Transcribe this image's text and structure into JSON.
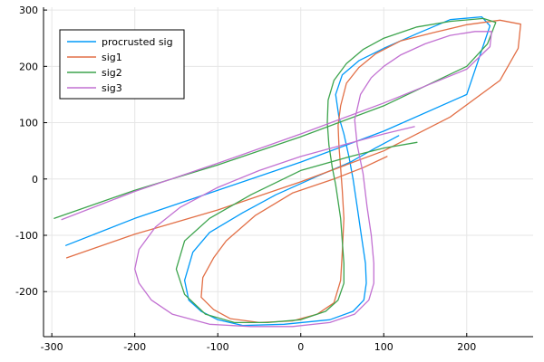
{
  "chart_data": {
    "type": "line",
    "xlim": [
      -310,
      280
    ],
    "ylim": [
      -280,
      305
    ],
    "x_ticks": [
      -300,
      -200,
      -100,
      0,
      100,
      200
    ],
    "y_ticks": [
      -200,
      -100,
      0,
      100,
      200,
      300
    ],
    "x_tick_labels": [
      "-300",
      "-200",
      "-100",
      "0",
      "100",
      "200"
    ],
    "y_tick_labels": [
      "-200",
      "-100",
      "0",
      "100",
      "200",
      "300"
    ],
    "grid": true,
    "legend_position": "top-left",
    "series": [
      {
        "name": "procrusted sig",
        "color": "#009AF9",
        "points": [
          [
            -283,
            -118
          ],
          [
            -200,
            -70
          ],
          [
            -100,
            -20
          ],
          [
            0,
            30
          ],
          [
            100,
            85
          ],
          [
            200,
            150
          ],
          [
            228,
            272
          ],
          [
            218,
            288
          ],
          [
            180,
            283
          ],
          [
            140,
            258
          ],
          [
            100,
            232
          ],
          [
            70,
            210
          ],
          [
            50,
            185
          ],
          [
            42,
            150
          ],
          [
            46,
            110
          ],
          [
            52,
            80
          ],
          [
            58,
            40
          ],
          [
            63,
            0
          ],
          [
            68,
            -50
          ],
          [
            73,
            -100
          ],
          [
            78,
            -150
          ],
          [
            79,
            -185
          ],
          [
            76,
            -215
          ],
          [
            63,
            -235
          ],
          [
            35,
            -250
          ],
          [
            -20,
            -258
          ],
          [
            -70,
            -260
          ],
          [
            -100,
            -250
          ],
          [
            -120,
            -235
          ],
          [
            -135,
            -215
          ],
          [
            -140,
            -180
          ],
          [
            -130,
            -130
          ],
          [
            -110,
            -95
          ],
          [
            -70,
            -60
          ],
          [
            -30,
            -28
          ],
          [
            20,
            5
          ],
          [
            60,
            30
          ],
          [
            90,
            55
          ],
          [
            118,
            77
          ]
        ]
      },
      {
        "name": "sig1",
        "color": "#E26F46",
        "points": [
          [
            -282,
            -140
          ],
          [
            -200,
            -98
          ],
          [
            -100,
            -55
          ],
          [
            0,
            -5
          ],
          [
            100,
            50
          ],
          [
            180,
            110
          ],
          [
            240,
            175
          ],
          [
            262,
            232
          ],
          [
            265,
            275
          ],
          [
            240,
            282
          ],
          [
            200,
            274
          ],
          [
            160,
            260
          ],
          [
            120,
            245
          ],
          [
            90,
            222
          ],
          [
            70,
            198
          ],
          [
            55,
            170
          ],
          [
            48,
            130
          ],
          [
            45,
            95
          ],
          [
            46,
            60
          ],
          [
            48,
            20
          ],
          [
            50,
            -20
          ],
          [
            52,
            -70
          ],
          [
            50,
            -130
          ],
          [
            48,
            -180
          ],
          [
            40,
            -220
          ],
          [
            20,
            -240
          ],
          [
            -10,
            -252
          ],
          [
            -50,
            -255
          ],
          [
            -85,
            -248
          ],
          [
            -105,
            -232
          ],
          [
            -120,
            -210
          ],
          [
            -118,
            -175
          ],
          [
            -105,
            -140
          ],
          [
            -90,
            -110
          ],
          [
            -55,
            -65
          ],
          [
            -10,
            -25
          ],
          [
            40,
            0
          ],
          [
            75,
            20
          ],
          [
            104,
            40
          ]
        ]
      },
      {
        "name": "sig2",
        "color": "#3DA44D",
        "points": [
          [
            -297,
            -70
          ],
          [
            -200,
            -20
          ],
          [
            -100,
            25
          ],
          [
            0,
            75
          ],
          [
            100,
            130
          ],
          [
            200,
            200
          ],
          [
            225,
            240
          ],
          [
            235,
            278
          ],
          [
            220,
            285
          ],
          [
            180,
            280
          ],
          [
            140,
            270
          ],
          [
            100,
            250
          ],
          [
            75,
            230
          ],
          [
            55,
            205
          ],
          [
            40,
            175
          ],
          [
            33,
            140
          ],
          [
            32,
            100
          ],
          [
            34,
            60
          ],
          [
            38,
            20
          ],
          [
            42,
            -10
          ],
          [
            48,
            -70
          ],
          [
            52,
            -150
          ],
          [
            52,
            -185
          ],
          [
            45,
            -215
          ],
          [
            30,
            -235
          ],
          [
            0,
            -250
          ],
          [
            -40,
            -255
          ],
          [
            -80,
            -255
          ],
          [
            -115,
            -240
          ],
          [
            -140,
            -205
          ],
          [
            -150,
            -160
          ],
          [
            -140,
            -110
          ],
          [
            -110,
            -70
          ],
          [
            -60,
            -28
          ],
          [
            0,
            15
          ],
          [
            60,
            40
          ],
          [
            100,
            55
          ],
          [
            140,
            65
          ]
        ]
      },
      {
        "name": "sig3",
        "color": "#C271D2",
        "points": [
          [
            -288,
            -72
          ],
          [
            -200,
            -22
          ],
          [
            -100,
            28
          ],
          [
            0,
            80
          ],
          [
            100,
            135
          ],
          [
            200,
            195
          ],
          [
            228,
            235
          ],
          [
            230,
            262
          ],
          [
            210,
            262
          ],
          [
            180,
            255
          ],
          [
            150,
            240
          ],
          [
            120,
            220
          ],
          [
            100,
            200
          ],
          [
            85,
            180
          ],
          [
            72,
            150
          ],
          [
            65,
            105
          ],
          [
            68,
            60
          ],
          [
            75,
            10
          ],
          [
            80,
            -50
          ],
          [
            85,
            -100
          ],
          [
            88,
            -150
          ],
          [
            88,
            -185
          ],
          [
            82,
            -215
          ],
          [
            65,
            -240
          ],
          [
            35,
            -255
          ],
          [
            -10,
            -262
          ],
          [
            -60,
            -262
          ],
          [
            -110,
            -258
          ],
          [
            -155,
            -240
          ],
          [
            -180,
            -215
          ],
          [
            -195,
            -185
          ],
          [
            -200,
            -160
          ],
          [
            -195,
            -125
          ],
          [
            -175,
            -85
          ],
          [
            -145,
            -50
          ],
          [
            -100,
            -15
          ],
          [
            -50,
            15
          ],
          [
            0,
            40
          ],
          [
            50,
            60
          ],
          [
            100,
            80
          ],
          [
            137,
            93
          ]
        ]
      }
    ]
  }
}
